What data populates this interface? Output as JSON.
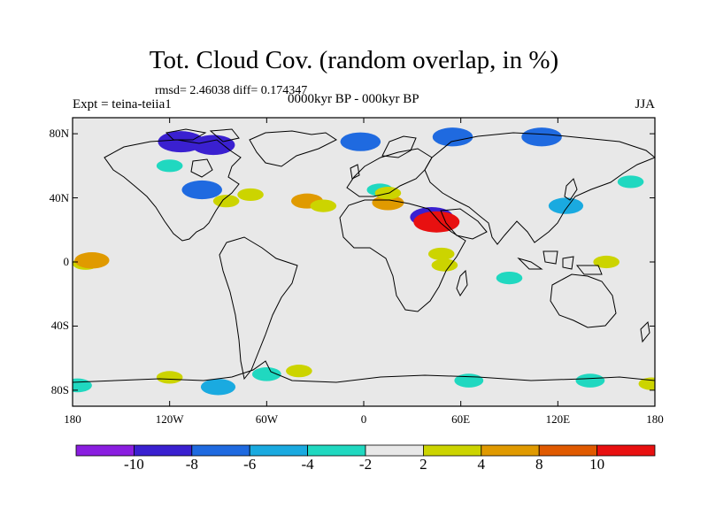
{
  "header": {
    "title": "Tot. Cloud Cov. (random overlap, in %)",
    "stats": "rmsd= 2.46038 diff= 0.174347",
    "experiment": "Expt = teina-teiia1",
    "period": "0000kyr BP - 000kyr BP",
    "season": "JJA"
  },
  "chart_data": {
    "type": "heatmap",
    "title": "Tot. Cloud Cov. (random overlap, in %)",
    "subtitle": "0000kyr BP - 000kyr BP",
    "season": "JJA",
    "rmsd": 2.46038,
    "diff": 0.174347,
    "x_ticks": [
      "180",
      "120W",
      "60W",
      "0",
      "60E",
      "120E",
      "180"
    ],
    "y_ticks": [
      "80N",
      "40N",
      "0",
      "40S",
      "80S"
    ],
    "lon_range": [
      -180,
      180
    ],
    "lat_range": [
      -90,
      90
    ],
    "colorbar": {
      "levels": [
        -10,
        -8,
        -6,
        -4,
        -2,
        2,
        4,
        8,
        10
      ],
      "labels": [
        "-10",
        "-8",
        "-6",
        "-4",
        "-2",
        "2",
        "4",
        "8",
        "10"
      ],
      "colors": [
        "#8a1ee0",
        "#3a20d0",
        "#1f6ae0",
        "#1aaae0",
        "#20d8c0",
        "#e8e8e8",
        "#ccd400",
        "#e09a00",
        "#e05a00",
        "#e81010"
      ]
    },
    "anomalies": [
      {
        "lon": -172,
        "lat": -1,
        "value": 3
      },
      {
        "lon": -168,
        "lat": 1,
        "value": 6
      },
      {
        "lon": -120,
        "lat": 60,
        "value": -3
      },
      {
        "lon": -113,
        "lat": 75,
        "value": -10
      },
      {
        "lon": -93,
        "lat": 73,
        "value": -9
      },
      {
        "lon": -100,
        "lat": 45,
        "value": -8
      },
      {
        "lon": -85,
        "lat": 38,
        "value": 3
      },
      {
        "lon": -70,
        "lat": 42,
        "value": 3
      },
      {
        "lon": -35,
        "lat": 38,
        "value": 5
      },
      {
        "lon": -25,
        "lat": 35,
        "value": 3
      },
      {
        "lon": -2,
        "lat": 75,
        "value": -8
      },
      {
        "lon": 10,
        "lat": 45,
        "value": -3
      },
      {
        "lon": 15,
        "lat": 37,
        "value": 5
      },
      {
        "lon": 15,
        "lat": 43,
        "value": 3
      },
      {
        "lon": 42,
        "lat": 28,
        "value": -9
      },
      {
        "lon": 45,
        "lat": 25,
        "value": 10
      },
      {
        "lon": 55,
        "lat": 78,
        "value": -8
      },
      {
        "lon": 50,
        "lat": -2,
        "value": 3
      },
      {
        "lon": 48,
        "lat": 5,
        "value": 3
      },
      {
        "lon": 90,
        "lat": -10,
        "value": -3
      },
      {
        "lon": 110,
        "lat": 78,
        "value": -8
      },
      {
        "lon": 125,
        "lat": 35,
        "value": -6
      },
      {
        "lon": 165,
        "lat": 50,
        "value": -3
      },
      {
        "lon": 150,
        "lat": 0,
        "value": 3
      },
      {
        "lon": -177,
        "lat": -77,
        "value": -4
      },
      {
        "lon": -120,
        "lat": -72,
        "value": 3
      },
      {
        "lon": -90,
        "lat": -78,
        "value": -6
      },
      {
        "lon": -60,
        "lat": -70,
        "value": -4
      },
      {
        "lon": -40,
        "lat": -68,
        "value": 3
      },
      {
        "lon": 65,
        "lat": -74,
        "value": -4
      },
      {
        "lon": 140,
        "lat": -74,
        "value": -4
      },
      {
        "lon": 178,
        "lat": -76,
        "value": 3
      }
    ]
  }
}
